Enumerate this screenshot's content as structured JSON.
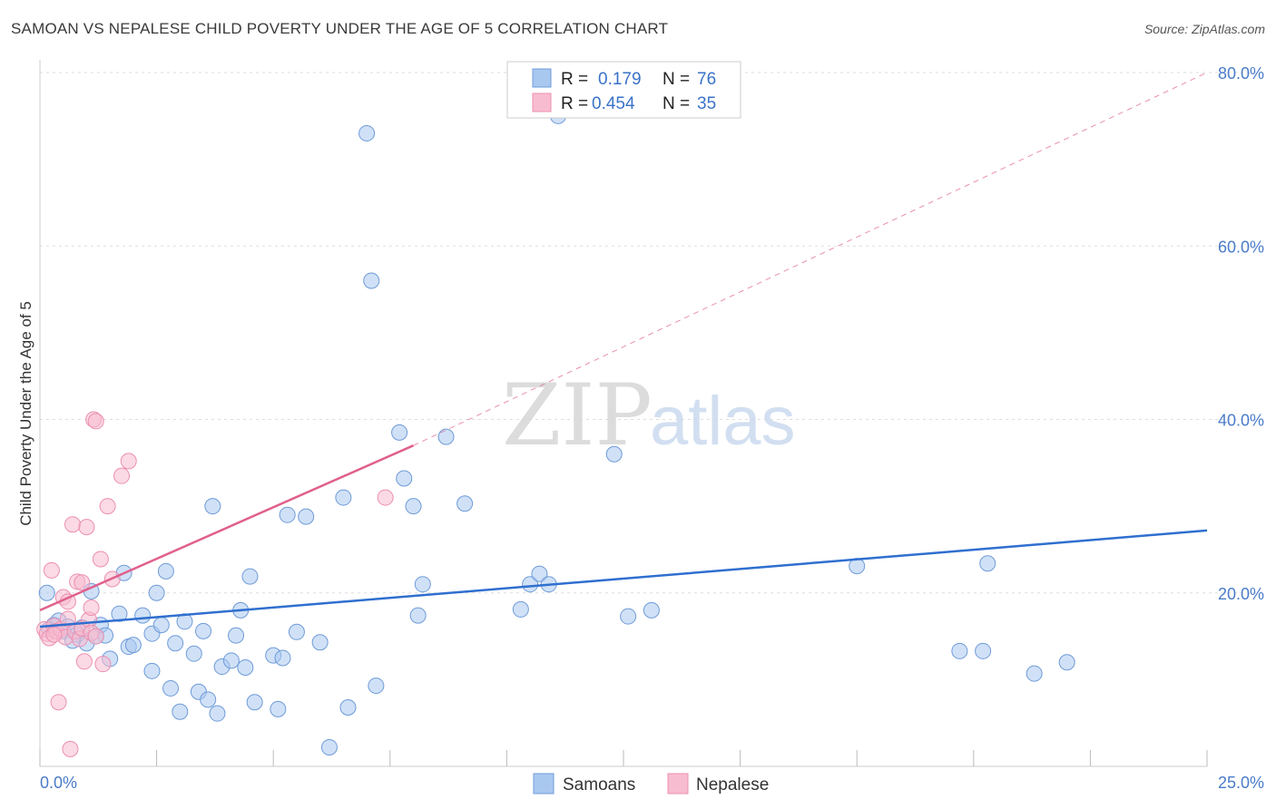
{
  "title": "SAMOAN VS NEPALESE CHILD POVERTY UNDER THE AGE OF 5 CORRELATION CHART",
  "source": "Source: ZipAtlas.com",
  "watermark": {
    "zip": "ZIP",
    "atlas": "atlas"
  },
  "legend": {
    "samoans": {
      "r_label": "R =",
      "r_value": "0.179",
      "n_label": "N =",
      "n_value": "76"
    },
    "nepalese": {
      "r_label": "R =",
      "r_value": "0.454",
      "n_label": "N =",
      "n_value": "35"
    }
  },
  "bottom_legend": {
    "samoans": "Samoans",
    "nepalese": "Nepalese"
  },
  "colors": {
    "samoans_fill": "#a9c8f0",
    "samoans_stroke": "#6f9bd8",
    "samoans_line": "#2f6fcf",
    "nepalese_fill": "#f8bcd0",
    "nepalese_stroke": "#ec8fb0",
    "nepalese_line": "#e0608c",
    "tick": "#4a7cc9",
    "grid": "#dddddd"
  },
  "chart_data": {
    "type": "scatter",
    "title": "SAMOAN VS NEPALESE CHILD POVERTY UNDER THE AGE OF 5 CORRELATION CHART",
    "xlabel": "",
    "ylabel": "Child Poverty Under the Age of 5",
    "xlim": [
      0,
      25
    ],
    "ylim": [
      0,
      80
    ],
    "x_tick_labels": [
      "0.0%",
      "25.0%"
    ],
    "y_tick_labels": [
      "20.0%",
      "40.0%",
      "60.0%",
      "80.0%"
    ],
    "y_ticks": [
      20,
      40,
      60,
      80
    ],
    "grid": true,
    "series": [
      {
        "name": "Samoans",
        "r": 0.179,
        "n": 76,
        "trend": {
          "x": [
            0,
            25
          ],
          "y": [
            16.1,
            27.2
          ],
          "dashed_extension": false
        },
        "points": [
          [
            0.2,
            15.8
          ],
          [
            0.3,
            16.3
          ],
          [
            0.4,
            16.8
          ],
          [
            0.5,
            15.6
          ],
          [
            0.6,
            16.1
          ],
          [
            0.8,
            15.2
          ],
          [
            0.9,
            16.0
          ],
          [
            1.0,
            14.2
          ],
          [
            1.1,
            20.2
          ],
          [
            1.3,
            16.3
          ],
          [
            1.4,
            15.1
          ],
          [
            1.5,
            12.4
          ],
          [
            1.7,
            17.6
          ],
          [
            1.8,
            22.3
          ],
          [
            1.9,
            13.8
          ],
          [
            2.0,
            14.0
          ],
          [
            2.2,
            17.4
          ],
          [
            2.4,
            15.3
          ],
          [
            2.4,
            11.0
          ],
          [
            2.5,
            20.0
          ],
          [
            2.6,
            16.3
          ],
          [
            2.7,
            22.5
          ],
          [
            2.8,
            9.0
          ],
          [
            2.9,
            14.2
          ],
          [
            3.0,
            6.3
          ],
          [
            3.1,
            16.7
          ],
          [
            3.3,
            13.0
          ],
          [
            3.4,
            8.6
          ],
          [
            3.5,
            15.6
          ],
          [
            3.6,
            7.7
          ],
          [
            3.7,
            30.0
          ],
          [
            3.8,
            6.1
          ],
          [
            3.9,
            11.5
          ],
          [
            4.1,
            12.2
          ],
          [
            4.2,
            15.1
          ],
          [
            4.3,
            18.0
          ],
          [
            4.4,
            11.4
          ],
          [
            4.5,
            21.9
          ],
          [
            4.6,
            7.4
          ],
          [
            5.0,
            12.8
          ],
          [
            5.1,
            6.6
          ],
          [
            5.2,
            12.5
          ],
          [
            5.3,
            29.0
          ],
          [
            5.5,
            15.5
          ],
          [
            5.7,
            28.8
          ],
          [
            6.0,
            14.3
          ],
          [
            6.2,
            2.2
          ],
          [
            6.5,
            31.0
          ],
          [
            6.6,
            6.8
          ],
          [
            7.0,
            73.0
          ],
          [
            7.1,
            56.0
          ],
          [
            7.2,
            9.3
          ],
          [
            7.7,
            38.5
          ],
          [
            7.8,
            33.2
          ],
          [
            8.0,
            30.0
          ],
          [
            8.1,
            17.4
          ],
          [
            8.2,
            21.0
          ],
          [
            8.7,
            38.0
          ],
          [
            9.1,
            30.3
          ],
          [
            10.3,
            18.1
          ],
          [
            10.5,
            21.0
          ],
          [
            10.7,
            22.2
          ],
          [
            10.9,
            21.0
          ],
          [
            11.1,
            75.0
          ],
          [
            12.3,
            36.0
          ],
          [
            12.6,
            17.3
          ],
          [
            13.1,
            18.0
          ],
          [
            17.5,
            23.1
          ],
          [
            19.7,
            13.3
          ],
          [
            20.2,
            13.3
          ],
          [
            20.3,
            23.4
          ],
          [
            21.3,
            10.7
          ],
          [
            22.0,
            12.0
          ],
          [
            0.15,
            20.0
          ],
          [
            0.7,
            14.5
          ],
          [
            1.2,
            15.0
          ]
        ]
      },
      {
        "name": "Nepalese",
        "r": 0.454,
        "n": 35,
        "trend": {
          "x": [
            0,
            8.0
          ],
          "y": [
            18.0,
            37.0
          ],
          "dashed_to": [
            25,
            80
          ]
        },
        "points": [
          [
            0.1,
            15.8
          ],
          [
            0.15,
            15.3
          ],
          [
            0.2,
            14.8
          ],
          [
            0.25,
            22.6
          ],
          [
            0.3,
            16.2
          ],
          [
            0.35,
            15.6
          ],
          [
            0.4,
            7.4
          ],
          [
            0.45,
            15.8
          ],
          [
            0.5,
            19.5
          ],
          [
            0.55,
            14.9
          ],
          [
            0.6,
            19.0
          ],
          [
            0.65,
            2.0
          ],
          [
            0.7,
            27.9
          ],
          [
            0.75,
            15.6
          ],
          [
            0.8,
            21.3
          ],
          [
            0.85,
            14.7
          ],
          [
            0.9,
            21.2
          ],
          [
            0.9,
            15.9
          ],
          [
            0.95,
            12.1
          ],
          [
            1.0,
            27.6
          ],
          [
            1.05,
            16.9
          ],
          [
            1.1,
            18.3
          ],
          [
            1.1,
            15.4
          ],
          [
            1.15,
            40.0
          ],
          [
            1.2,
            15.0
          ],
          [
            1.2,
            39.8
          ],
          [
            1.3,
            23.9
          ],
          [
            1.35,
            11.8
          ],
          [
            1.45,
            30.0
          ],
          [
            1.55,
            21.6
          ],
          [
            1.75,
            33.5
          ],
          [
            1.9,
            35.2
          ],
          [
            0.6,
            17.0
          ],
          [
            7.4,
            31.0
          ],
          [
            0.3,
            15.2
          ]
        ]
      }
    ]
  }
}
